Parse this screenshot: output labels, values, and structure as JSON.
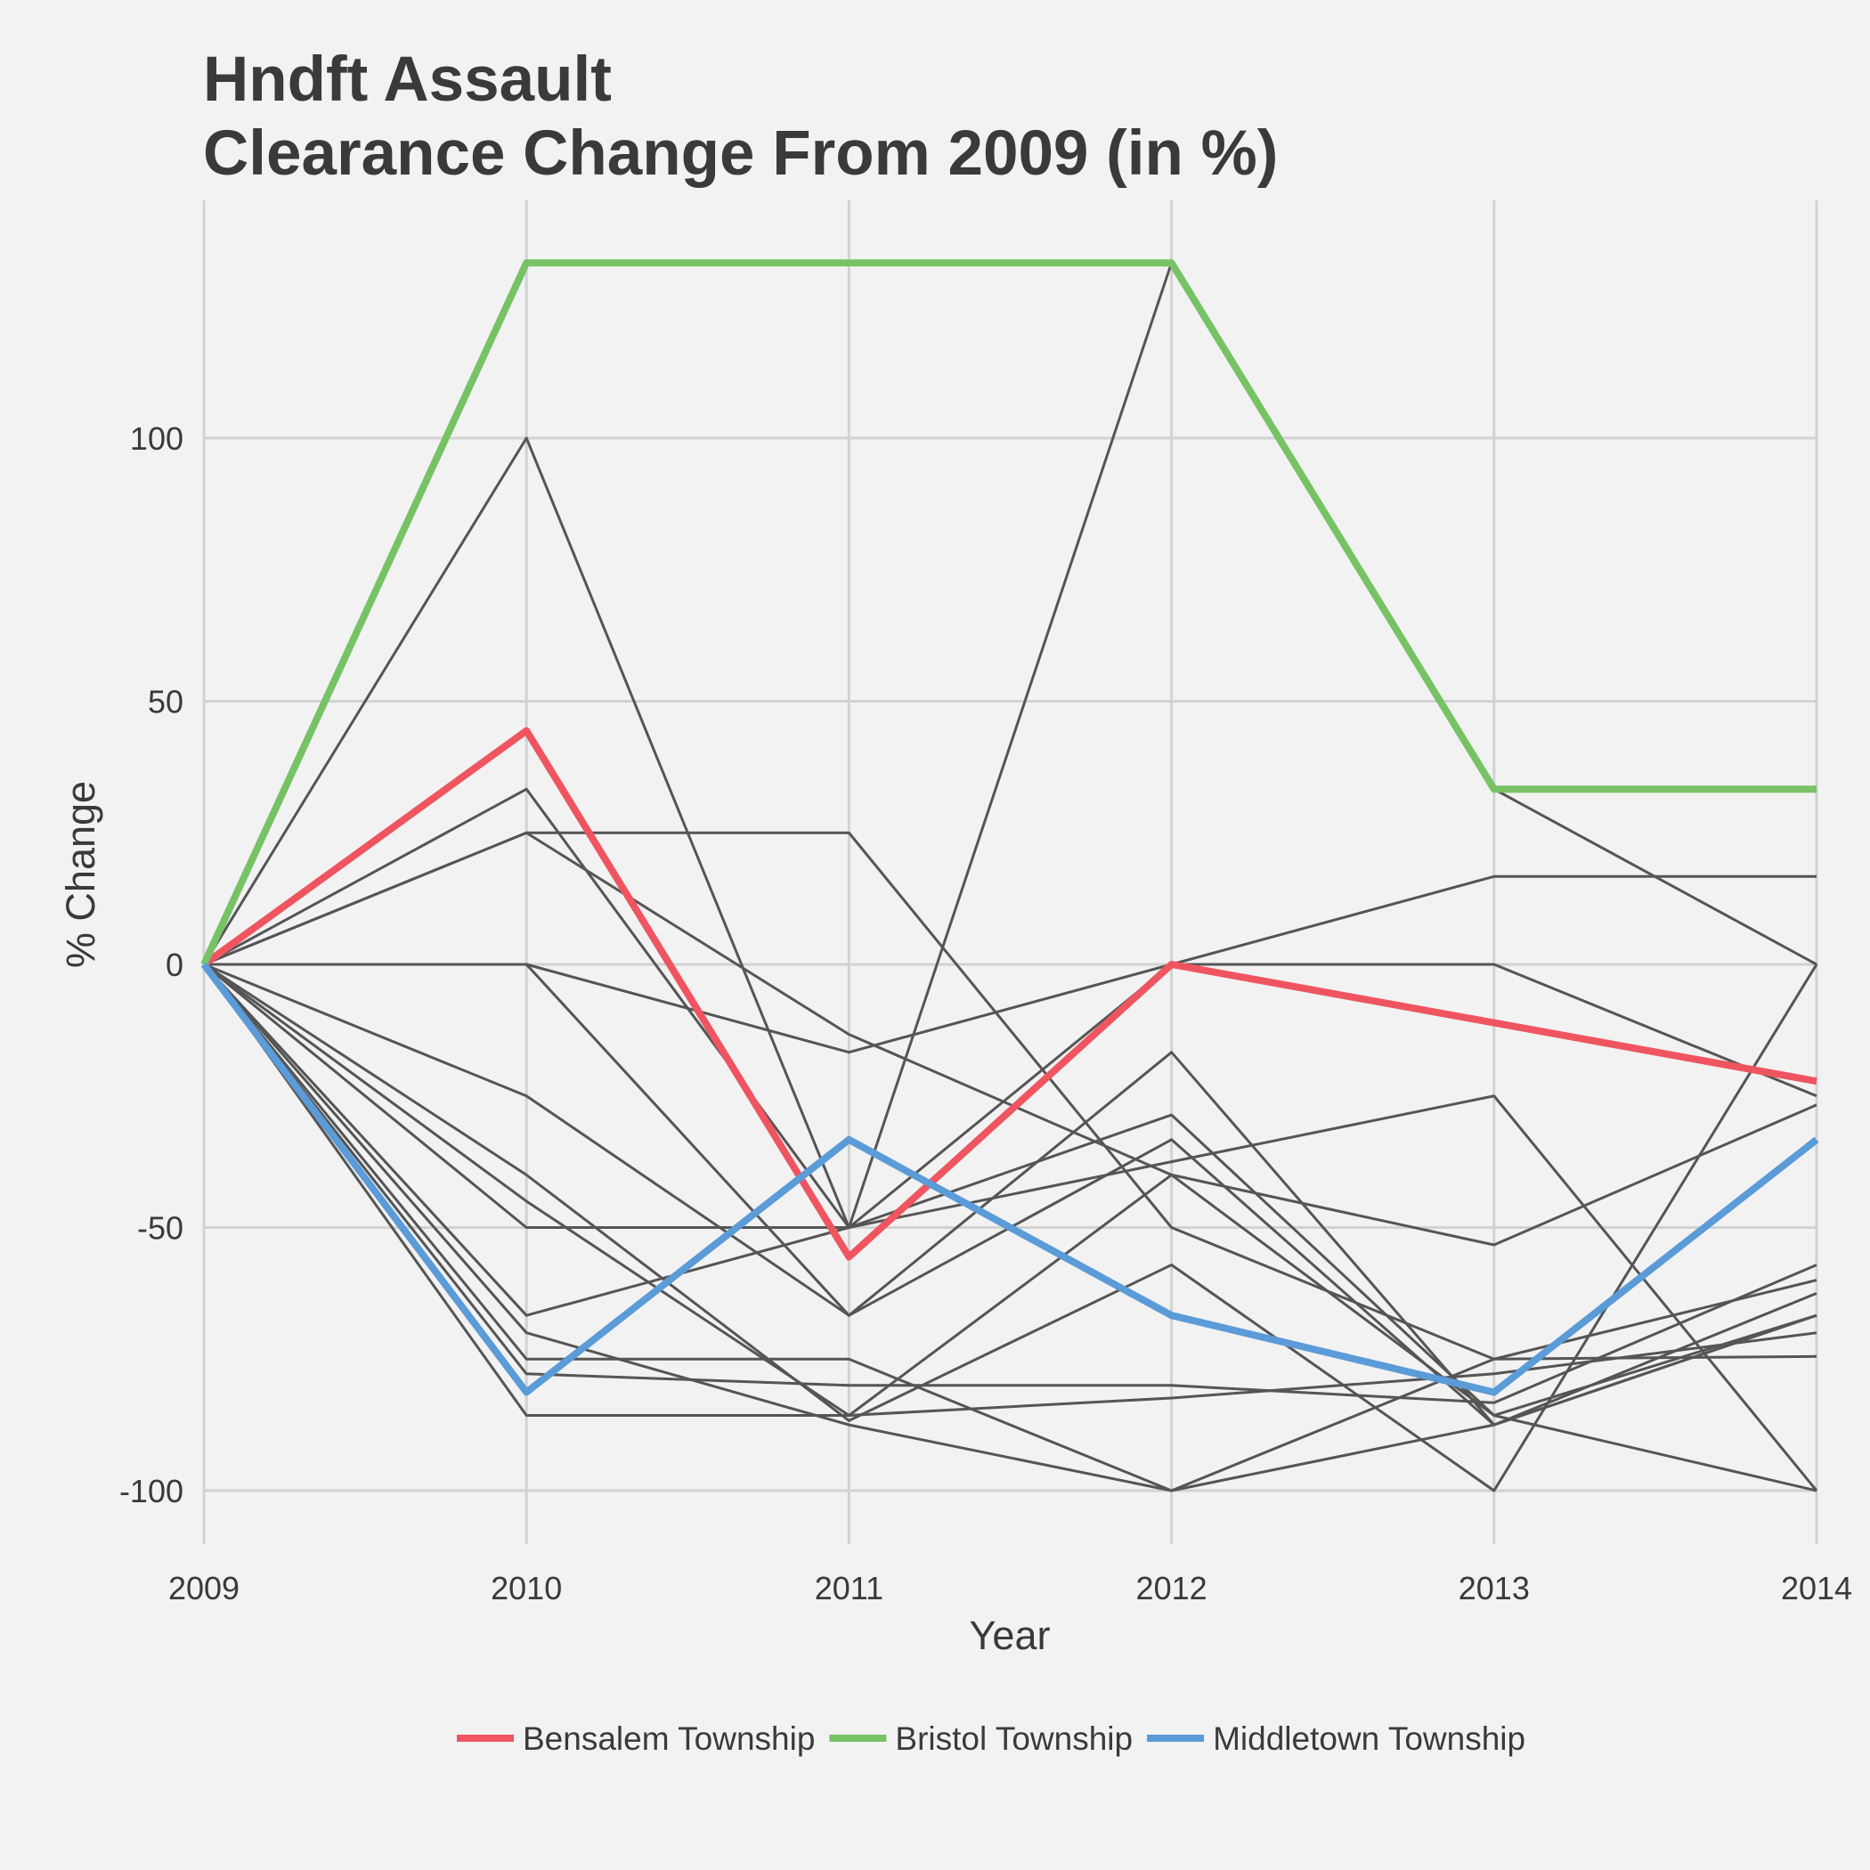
{
  "chart_data": {
    "type": "line",
    "title_line1": "Hndft Assault",
    "title_line2": "Clearance Change From 2009 (in %)",
    "xlabel": "Year",
    "ylabel": "% Change",
    "x": [
      2009,
      2010,
      2011,
      2012,
      2013,
      2014
    ],
    "y_ticks": [
      -100,
      -50,
      0,
      50,
      100
    ],
    "ylim": [
      -110,
      145
    ],
    "grid": true,
    "legend_position": "bottom",
    "highlight_colors": {
      "Bensalem Township": "#ef5560",
      "Bristol Township": "#77c265",
      "Middletown Township": "#5b9bd8"
    },
    "background_series_color": "#555555",
    "highlighted_series": [
      {
        "name": "Bensalem Township",
        "values": [
          0,
          44.4,
          -55.6,
          0,
          -11.1,
          -22.2
        ]
      },
      {
        "name": "Bristol Township",
        "values": [
          0,
          133.3,
          133.3,
          133.3,
          33.3,
          33.3
        ]
      },
      {
        "name": "Middletown Township",
        "values": [
          0,
          -81.3,
          -33.3,
          -66.7,
          -81.3,
          -33.3
        ]
      }
    ],
    "background_series": [
      [
        0,
        100,
        -50,
        133.3,
        33.3,
        0
      ],
      [
        0,
        33.3,
        -50,
        0,
        0,
        -25
      ],
      [
        0,
        25,
        25,
        -50,
        -75,
        -60
      ],
      [
        0,
        25,
        -13.3,
        -40,
        -53.3,
        -26.7
      ],
      [
        0,
        0,
        -16.7,
        0,
        16.7,
        16.7
      ],
      [
        0,
        0,
        -66.7,
        -16.7,
        -87.5,
        -66.7
      ],
      [
        0,
        -25,
        -66.7,
        -33.3,
        -87.5,
        -62.5
      ],
      [
        0,
        -50,
        -50,
        -28.6,
        -85.7,
        -100
      ],
      [
        0,
        -66.7,
        -50,
        -37.5,
        -25,
        -100
      ],
      [
        0,
        -40,
        -86.7,
        -57.1,
        -100,
        0
      ],
      [
        0,
        -70,
        -87.5,
        -100,
        -75,
        -74.5
      ],
      [
        0,
        -75,
        -75,
        -100,
        -87.5,
        -66.7
      ],
      [
        0,
        -77.8,
        -80,
        -80,
        -83.3,
        -57.1
      ],
      [
        0,
        -85.7,
        -85.7,
        -82.4,
        -77.8,
        -70
      ],
      [
        0,
        -45,
        -85.7,
        -40,
        -85.7,
        -66.7
      ]
    ]
  }
}
